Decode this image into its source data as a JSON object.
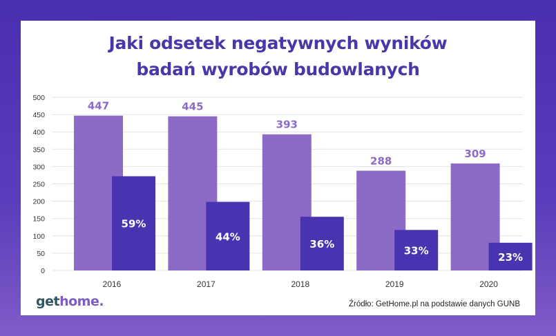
{
  "title_lines": [
    "Jaki odsetek negatywnych wyników",
    "badań wyrobów budowlanych"
  ],
  "chart_data": {
    "type": "bar",
    "categories": [
      "2016",
      "2017",
      "2018",
      "2019",
      "2020"
    ],
    "series": [
      {
        "values": [
          447,
          445,
          393,
          288,
          309
        ],
        "labels": [
          "447",
          "445",
          "393",
          "288",
          "309"
        ],
        "color": "#8c6bc6"
      },
      {
        "values": [
          272,
          198,
          155,
          117,
          80
        ],
        "labels": [
          "59%",
          "44%",
          "36%",
          "33%",
          "23%"
        ],
        "color": "#4a33b0"
      }
    ],
    "yticks": [
      "0",
      "50",
      "100",
      "150",
      "200",
      "250",
      "300",
      "350",
      "400",
      "450",
      "500"
    ],
    "ylim": [
      0,
      500
    ],
    "grid": true,
    "legend": "none"
  },
  "logo": {
    "part1": "get",
    "part2": "home",
    "dot": "."
  },
  "source": "Źródło: GetHome.pl na podstawie danych GUNB",
  "colors": {
    "background": "#4a2fb0",
    "title": "#4a36a8",
    "grid": "#e3e3e3"
  }
}
